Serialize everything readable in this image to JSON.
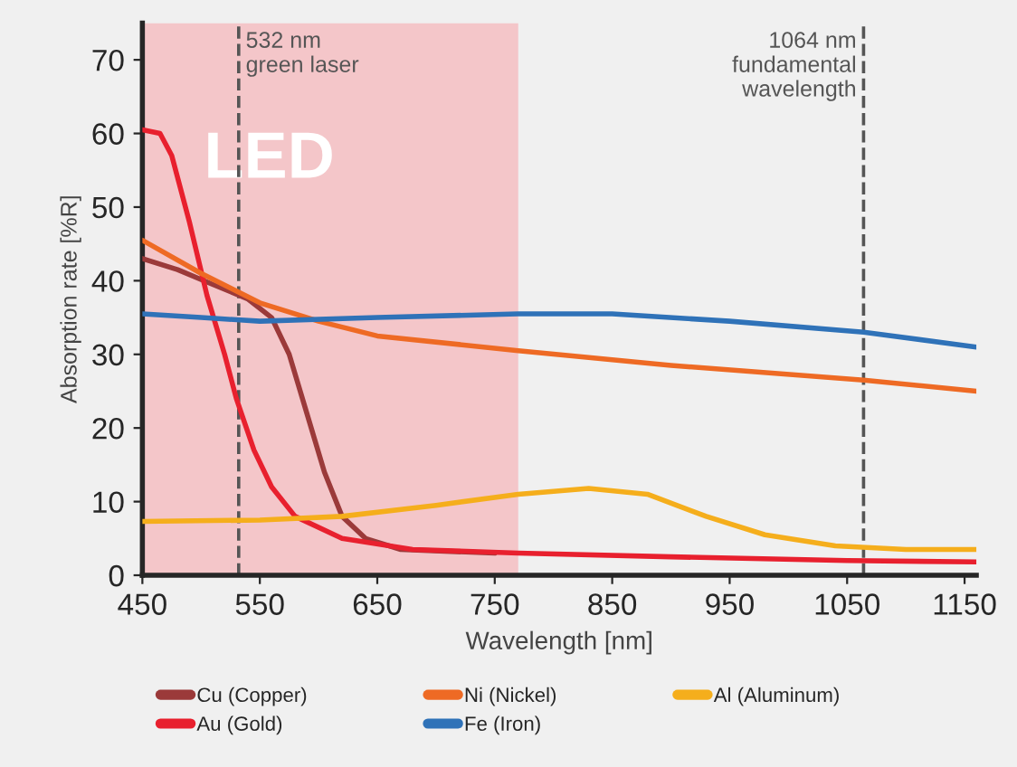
{
  "chart_data": {
    "type": "line",
    "xlabel": "Wavelength [nm]",
    "ylabel": "Absorption rate [%R]",
    "xlim": [
      450,
      1160
    ],
    "ylim": [
      0,
      75
    ],
    "xticks": [
      450,
      550,
      650,
      750,
      850,
      950,
      1050,
      1150
    ],
    "yticks": [
      0,
      10,
      20,
      30,
      40,
      50,
      60,
      70
    ],
    "grid": false,
    "legend": "bottom",
    "marker": "none",
    "line_style": "solid",
    "bands": [
      {
        "axis": "x",
        "from": 450,
        "to": 770,
        "label": "LED",
        "color": "#f4c6c9"
      }
    ],
    "ref_lines": [
      {
        "axis": "x",
        "value": 532,
        "label": "532 nm\ngreen laser",
        "line_style": "dashed",
        "color": "#555555"
      },
      {
        "axis": "x",
        "value": 1064,
        "label": "1064 nm\nfundamental\nwavelength",
        "line_style": "dashed",
        "color": "#555555"
      }
    ],
    "series": [
      {
        "name": "Cu (Copper)",
        "color": "#9b3a3a",
        "x": [
          450,
          480,
          510,
          540,
          560,
          575,
          590,
          605,
          620,
          640,
          670,
          750
        ],
        "values": [
          43,
          41.5,
          39.5,
          37.5,
          35,
          30,
          22,
          14,
          8,
          5,
          3.5,
          3
        ]
      },
      {
        "name": "Au (Gold)",
        "color": "#e8202e",
        "x": [
          450,
          465,
          475,
          490,
          505,
          520,
          530,
          545,
          560,
          580,
          620,
          680,
          770,
          900,
          1050,
          1160
        ],
        "values": [
          60.5,
          60,
          57,
          48,
          38,
          30,
          24,
          17,
          12,
          8,
          5,
          3.5,
          3,
          2.5,
          2,
          1.8
        ]
      },
      {
        "name": "Ni (Nickel)",
        "color": "#ee6a24",
        "x": [
          450,
          500,
          550,
          600,
          650,
          770,
          900,
          1064,
          1160
        ],
        "values": [
          45.5,
          41,
          37,
          34.5,
          32.5,
          30.5,
          28.5,
          26.5,
          25
        ]
      },
      {
        "name": "Fe (Iron)",
        "color": "#2f72b8",
        "x": [
          450,
          500,
          550,
          650,
          770,
          850,
          950,
          1064,
          1160
        ],
        "values": [
          35.5,
          35,
          34.5,
          35,
          35.5,
          35.5,
          34.5,
          33,
          31
        ]
      },
      {
        "name": "Al (Aluminum)",
        "color": "#f5ae1c",
        "x": [
          450,
          550,
          620,
          700,
          770,
          830,
          880,
          930,
          980,
          1040,
          1100,
          1160
        ],
        "values": [
          7.3,
          7.5,
          8,
          9.5,
          11,
          11.8,
          11,
          8,
          5.5,
          4,
          3.5,
          3.5
        ]
      }
    ]
  }
}
